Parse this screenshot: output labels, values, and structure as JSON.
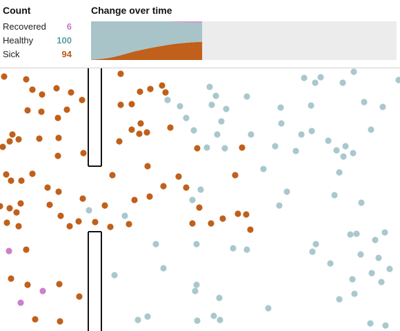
{
  "count_panel": {
    "title": "Count",
    "rows": [
      {
        "label": "Recovered",
        "value": "6",
        "color": "#c479c4"
      },
      {
        "label": "Healthy",
        "value": "100",
        "color": "#5d9ba6"
      },
      {
        "label": "Sick",
        "value": "94",
        "color": "#b85a13"
      }
    ]
  },
  "chart": {
    "title": "Change over time"
  },
  "colors": {
    "sick": "#c0601a",
    "healthy": "#a9c8cd",
    "recovered": "#cc7fcc",
    "chart_sick": "#c0601a",
    "chart_healthy": "#a9c4c8",
    "chart_recovered": "#d48ad4",
    "chart_empty": "#ececec",
    "wall": "#111111"
  },
  "chart_data": {
    "type": "area",
    "series": [
      {
        "name": "Sick",
        "values": [
          1,
          3,
          6,
          10,
          15,
          22,
          30,
          38,
          46,
          52,
          58,
          64,
          69,
          74,
          79,
          83,
          86,
          89,
          91,
          93,
          94
        ]
      },
      {
        "name": "Healthy",
        "values": [
          199,
          197,
          194,
          190,
          185,
          178,
          170,
          162,
          154,
          148,
          142,
          136,
          131,
          126,
          120,
          114,
          110,
          106,
          103,
          101,
          100
        ]
      },
      {
        "name": "Recovered",
        "values": [
          0,
          0,
          0,
          0,
          0,
          0,
          0,
          0,
          0,
          0,
          0,
          0,
          0,
          0,
          1,
          3,
          4,
          5,
          6,
          6,
          6
        ]
      }
    ],
    "total": 200,
    "steps_shown": 21,
    "steps_total": 56
  },
  "simulation": {
    "people": [
      {
        "x": 6,
        "y": 12,
        "s": "sick"
      },
      {
        "x": 38,
        "y": 16,
        "s": "sick"
      },
      {
        "x": 47,
        "y": 31,
        "s": "sick"
      },
      {
        "x": 61,
        "y": 38,
        "s": "sick"
      },
      {
        "x": 82,
        "y": 29,
        "s": "sick"
      },
      {
        "x": 103,
        "y": 35,
        "s": "sick"
      },
      {
        "x": 119,
        "y": 46,
        "s": "sick"
      },
      {
        "x": 97,
        "y": 60,
        "s": "sick"
      },
      {
        "x": 60,
        "y": 63,
        "s": "sick"
      },
      {
        "x": 40,
        "y": 61,
        "s": "sick"
      },
      {
        "x": 84,
        "y": 72,
        "s": "sick"
      },
      {
        "x": 18,
        "y": 96,
        "s": "sick"
      },
      {
        "x": 14,
        "y": 106,
        "s": "sick"
      },
      {
        "x": 27,
        "y": 103,
        "s": "sick"
      },
      {
        "x": 4,
        "y": 114,
        "s": "sick"
      },
      {
        "x": 57,
        "y": 102,
        "s": "sick"
      },
      {
        "x": 85,
        "y": 101,
        "s": "sick"
      },
      {
        "x": 121,
        "y": 123,
        "s": "sick"
      },
      {
        "x": 84,
        "y": 127,
        "s": "sick"
      },
      {
        "x": 9,
        "y": 154,
        "s": "sick"
      },
      {
        "x": 16,
        "y": 163,
        "s": "sick"
      },
      {
        "x": 31,
        "y": 163,
        "s": "sick"
      },
      {
        "x": 47,
        "y": 153,
        "s": "sick"
      },
      {
        "x": 69,
        "y": 173,
        "s": "sick"
      },
      {
        "x": 85,
        "y": 179,
        "s": "sick"
      },
      {
        "x": 0,
        "y": 200,
        "s": "sick"
      },
      {
        "x": 14,
        "y": 203,
        "s": "sick"
      },
      {
        "x": 30,
        "y": 196,
        "s": "sick"
      },
      {
        "x": 72,
        "y": 198,
        "s": "sick"
      },
      {
        "x": 120,
        "y": 189,
        "s": "sick"
      },
      {
        "x": 24,
        "y": 209,
        "s": "sick"
      },
      {
        "x": 88,
        "y": 214,
        "s": "sick"
      },
      {
        "x": 10,
        "y": 224,
        "s": "sick"
      },
      {
        "x": 27,
        "y": 229,
        "s": "sick"
      },
      {
        "x": 101,
        "y": 229,
        "s": "sick"
      },
      {
        "x": 114,
        "y": 222,
        "s": "sick"
      },
      {
        "x": 38,
        "y": 263,
        "s": "sick"
      },
      {
        "x": 16,
        "y": 305,
        "s": "sick"
      },
      {
        "x": 40,
        "y": 314,
        "s": "sick"
      },
      {
        "x": 86,
        "y": 313,
        "s": "sick"
      },
      {
        "x": 115,
        "y": 331,
        "s": "sick"
      },
      {
        "x": 51,
        "y": 364,
        "s": "sick"
      },
      {
        "x": 87,
        "y": 367,
        "s": "sick"
      },
      {
        "x": 175,
        "y": 8,
        "s": "sick"
      },
      {
        "x": 235,
        "y": 25,
        "s": "sick"
      },
      {
        "x": 218,
        "y": 30,
        "s": "sick"
      },
      {
        "x": 203,
        "y": 34,
        "s": "sick"
      },
      {
        "x": 240,
        "y": 35,
        "s": "sick"
      },
      {
        "x": 175,
        "y": 53,
        "s": "sick"
      },
      {
        "x": 191,
        "y": 52,
        "s": "sick"
      },
      {
        "x": 204,
        "y": 80,
        "s": "sick"
      },
      {
        "x": 191,
        "y": 89,
        "s": "sick"
      },
      {
        "x": 202,
        "y": 95,
        "s": "sick"
      },
      {
        "x": 213,
        "y": 93,
        "s": "sick"
      },
      {
        "x": 247,
        "y": 86,
        "s": "sick"
      },
      {
        "x": 173,
        "y": 106,
        "s": "sick"
      },
      {
        "x": 286,
        "y": 116,
        "s": "sick"
      },
      {
        "x": 351,
        "y": 115,
        "s": "sick"
      },
      {
        "x": 214,
        "y": 142,
        "s": "sick"
      },
      {
        "x": 163,
        "y": 155,
        "s": "sick"
      },
      {
        "x": 259,
        "y": 157,
        "s": "sick"
      },
      {
        "x": 341,
        "y": 155,
        "s": "sick"
      },
      {
        "x": 237,
        "y": 171,
        "s": "sick"
      },
      {
        "x": 270,
        "y": 173,
        "s": "sick"
      },
      {
        "x": 217,
        "y": 186,
        "s": "sick"
      },
      {
        "x": 195,
        "y": 191,
        "s": "sick"
      },
      {
        "x": 152,
        "y": 199,
        "s": "sick"
      },
      {
        "x": 138,
        "y": 223,
        "s": "sick"
      },
      {
        "x": 160,
        "y": 230,
        "s": "sick"
      },
      {
        "x": 187,
        "y": 226,
        "s": "sick"
      },
      {
        "x": 289,
        "y": 202,
        "s": "sick"
      },
      {
        "x": 345,
        "y": 211,
        "s": "sick"
      },
      {
        "x": 357,
        "y": 212,
        "s": "sick"
      },
      {
        "x": 323,
        "y": 218,
        "s": "sick"
      },
      {
        "x": 279,
        "y": 225,
        "s": "sick"
      },
      {
        "x": 306,
        "y": 225,
        "s": "sick"
      },
      {
        "x": 363,
        "y": 234,
        "s": "sick"
      },
      {
        "x": 304,
        "y": 27,
        "s": "healthy"
      },
      {
        "x": 313,
        "y": 40,
        "s": "healthy"
      },
      {
        "x": 243,
        "y": 46,
        "s": "healthy"
      },
      {
        "x": 261,
        "y": 55,
        "s": "healthy"
      },
      {
        "x": 307,
        "y": 53,
        "s": "healthy"
      },
      {
        "x": 328,
        "y": 59,
        "s": "healthy"
      },
      {
        "x": 358,
        "y": 41,
        "s": "healthy"
      },
      {
        "x": 270,
        "y": 72,
        "s": "healthy"
      },
      {
        "x": 281,
        "y": 90,
        "s": "healthy"
      },
      {
        "x": 321,
        "y": 77,
        "s": "healthy"
      },
      {
        "x": 315,
        "y": 96,
        "s": "healthy"
      },
      {
        "x": 364,
        "y": 96,
        "s": "healthy"
      },
      {
        "x": 300,
        "y": 115,
        "s": "healthy"
      },
      {
        "x": 326,
        "y": 116,
        "s": "healthy"
      },
      {
        "x": 399,
        "y": 113,
        "s": "healthy"
      },
      {
        "x": 441,
        "y": 14,
        "s": "healthy"
      },
      {
        "x": 457,
        "y": 21,
        "s": "healthy"
      },
      {
        "x": 465,
        "y": 13,
        "s": "healthy"
      },
      {
        "x": 497,
        "y": 21,
        "s": "healthy"
      },
      {
        "x": 513,
        "y": 5,
        "s": "healthy"
      },
      {
        "x": 578,
        "y": 17,
        "s": "healthy"
      },
      {
        "x": 407,
        "y": 57,
        "s": "healthy"
      },
      {
        "x": 451,
        "y": 54,
        "s": "healthy"
      },
      {
        "x": 528,
        "y": 49,
        "s": "healthy"
      },
      {
        "x": 555,
        "y": 56,
        "s": "healthy"
      },
      {
        "x": 408,
        "y": 80,
        "s": "healthy"
      },
      {
        "x": 437,
        "y": 96,
        "s": "healthy"
      },
      {
        "x": 452,
        "y": 91,
        "s": "healthy"
      },
      {
        "x": 476,
        "y": 105,
        "s": "healthy"
      },
      {
        "x": 488,
        "y": 119,
        "s": "healthy"
      },
      {
        "x": 501,
        "y": 113,
        "s": "healthy"
      },
      {
        "x": 512,
        "y": 123,
        "s": "healthy"
      },
      {
        "x": 538,
        "y": 89,
        "s": "healthy"
      },
      {
        "x": 429,
        "y": 120,
        "s": "healthy"
      },
      {
        "x": 498,
        "y": 128,
        "s": "healthy"
      },
      {
        "x": 382,
        "y": 146,
        "s": "healthy"
      },
      {
        "x": 492,
        "y": 151,
        "s": "healthy"
      },
      {
        "x": 416,
        "y": 179,
        "s": "healthy"
      },
      {
        "x": 485,
        "y": 184,
        "s": "healthy"
      },
      {
        "x": 405,
        "y": 199,
        "s": "healthy"
      },
      {
        "x": 524,
        "y": 195,
        "s": "healthy"
      },
      {
        "x": 291,
        "y": 176,
        "s": "healthy"
      },
      {
        "x": 279,
        "y": 191,
        "s": "healthy"
      },
      {
        "x": 129,
        "y": 206,
        "s": "healthy"
      },
      {
        "x": 181,
        "y": 214,
        "s": "healthy"
      },
      {
        "x": 226,
        "y": 255,
        "s": "healthy"
      },
      {
        "x": 285,
        "y": 255,
        "s": "healthy"
      },
      {
        "x": 338,
        "y": 261,
        "s": "healthy"
      },
      {
        "x": 358,
        "y": 263,
        "s": "healthy"
      },
      {
        "x": 237,
        "y": 290,
        "s": "healthy"
      },
      {
        "x": 166,
        "y": 300,
        "s": "healthy"
      },
      {
        "x": 285,
        "y": 314,
        "s": "healthy"
      },
      {
        "x": 283,
        "y": 323,
        "s": "healthy"
      },
      {
        "x": 318,
        "y": 333,
        "s": "healthy"
      },
      {
        "x": 389,
        "y": 348,
        "s": "healthy"
      },
      {
        "x": 200,
        "y": 365,
        "s": "healthy"
      },
      {
        "x": 214,
        "y": 360,
        "s": "healthy"
      },
      {
        "x": 286,
        "y": 366,
        "s": "healthy"
      },
      {
        "x": 310,
        "y": 359,
        "s": "healthy"
      },
      {
        "x": 319,
        "y": 365,
        "s": "healthy"
      },
      {
        "x": 458,
        "y": 255,
        "s": "healthy"
      },
      {
        "x": 453,
        "y": 266,
        "s": "healthy"
      },
      {
        "x": 479,
        "y": 283,
        "s": "healthy"
      },
      {
        "x": 508,
        "y": 241,
        "s": "healthy"
      },
      {
        "x": 517,
        "y": 240,
        "s": "healthy"
      },
      {
        "x": 544,
        "y": 249,
        "s": "healthy"
      },
      {
        "x": 558,
        "y": 238,
        "s": "healthy"
      },
      {
        "x": 523,
        "y": 270,
        "s": "healthy"
      },
      {
        "x": 549,
        "y": 275,
        "s": "healthy"
      },
      {
        "x": 539,
        "y": 297,
        "s": "healthy"
      },
      {
        "x": 565,
        "y": 291,
        "s": "healthy"
      },
      {
        "x": 511,
        "y": 306,
        "s": "healthy"
      },
      {
        "x": 553,
        "y": 310,
        "s": "healthy"
      },
      {
        "x": 514,
        "y": 327,
        "s": "healthy"
      },
      {
        "x": 492,
        "y": 335,
        "s": "healthy"
      },
      {
        "x": 537,
        "y": 370,
        "s": "healthy"
      },
      {
        "x": 559,
        "y": 373,
        "s": "healthy"
      },
      {
        "x": 13,
        "y": 265,
        "s": "recovered"
      },
      {
        "x": 30,
        "y": 340,
        "s": "recovered"
      },
      {
        "x": 62,
        "y": 323,
        "s": "recovered"
      }
    ],
    "walls": [
      {
        "x1": 128,
        "y1": 0,
        "x2": 128,
        "y2": 142
      },
      {
        "x1": 128,
        "y1": 142,
        "x2": 147,
        "y2": 142
      },
      {
        "x1": 147,
        "y1": 142,
        "x2": 147,
        "y2": 0
      },
      {
        "x1": 128,
        "y1": 381,
        "x2": 128,
        "y2": 237
      },
      {
        "x1": 128,
        "y1": 237,
        "x2": 147,
        "y2": 237
      },
      {
        "x1": 147,
        "y1": 237,
        "x2": 147,
        "y2": 381
      }
    ]
  }
}
